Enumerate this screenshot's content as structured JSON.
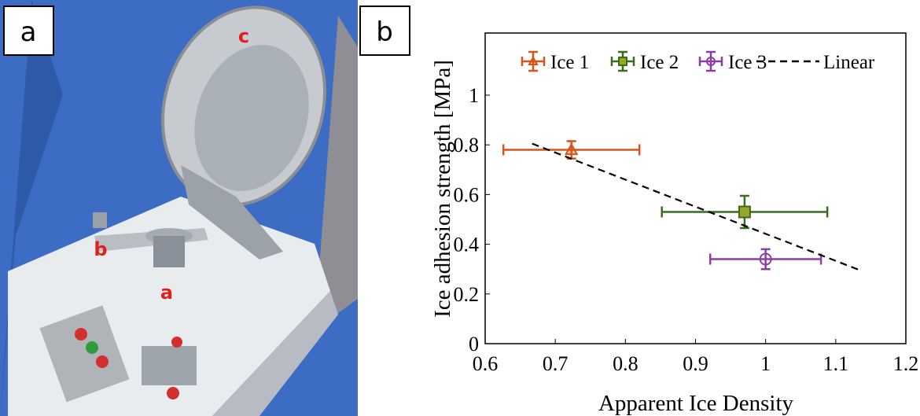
{
  "panel_labels": [
    "a",
    "b"
  ],
  "photo_labels": [
    "c",
    "b",
    "a"
  ],
  "chart_data": {
    "type": "errorbar",
    "xlabel": "Apparent Ice Density",
    "ylabel": "Ice adhesion strength [MPa]",
    "xlim": [
      0.6,
      1.2
    ],
    "ylim": [
      0,
      1.25
    ],
    "xticks": [
      0.6,
      0.7,
      0.8,
      0.9,
      1,
      1.1,
      1.2
    ],
    "yticks": [
      0,
      0.2,
      0.4,
      0.6,
      0.8,
      1
    ],
    "legend": "top",
    "series": [
      {
        "name": "Ice 1",
        "color": "#d95319",
        "marker": "triangle",
        "x": [
          0.723
        ],
        "values": [
          0.78
        ],
        "xerr": [
          0.097
        ],
        "yerr": [
          0.035
        ]
      },
      {
        "name": "Ice 2",
        "color": "#3a6e1f",
        "marker": "square",
        "x": [
          0.97
        ],
        "values": [
          0.53
        ],
        "xerr": [
          0.118
        ],
        "yerr": [
          0.065
        ]
      },
      {
        "name": "Ice 3",
        "color": "#8b3fa6",
        "marker": "circle",
        "x": [
          1.0
        ],
        "values": [
          0.34
        ],
        "xerr": [
          0.079
        ],
        "yerr": [
          0.04
        ]
      },
      {
        "name": "Linear",
        "color": "#000000",
        "marker": "dashed-line",
        "x": [
          0.667,
          1.135
        ],
        "values": [
          0.805,
          0.295
        ]
      }
    ]
  }
}
